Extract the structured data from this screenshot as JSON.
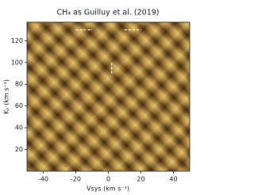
{
  "chart_data": {
    "type": "heatmap",
    "title": "CH₄ as Guilluy et al. (2019)",
    "x_label": "Vsys (km s⁻¹)",
    "y_label": "Kₚ (km s⁻¹)",
    "xlim": [
      -50,
      50
    ],
    "xticks": [
      -40,
      -20,
      0,
      20,
      40
    ],
    "ylim": [
      0,
      137
    ],
    "yticks": [
      20,
      40,
      60,
      80,
      100,
      120
    ],
    "markers": [
      {
        "x": [
          -20,
          -10
        ],
        "y": [
          130,
          130
        ]
      },
      {
        "x": [
          10,
          20
        ],
        "y": [
          130,
          130
        ]
      },
      {
        "x": [
          2,
          2
        ],
        "y": [
          90,
          100
        ]
      }
    ],
    "marker_color": "#ffffff"
  }
}
